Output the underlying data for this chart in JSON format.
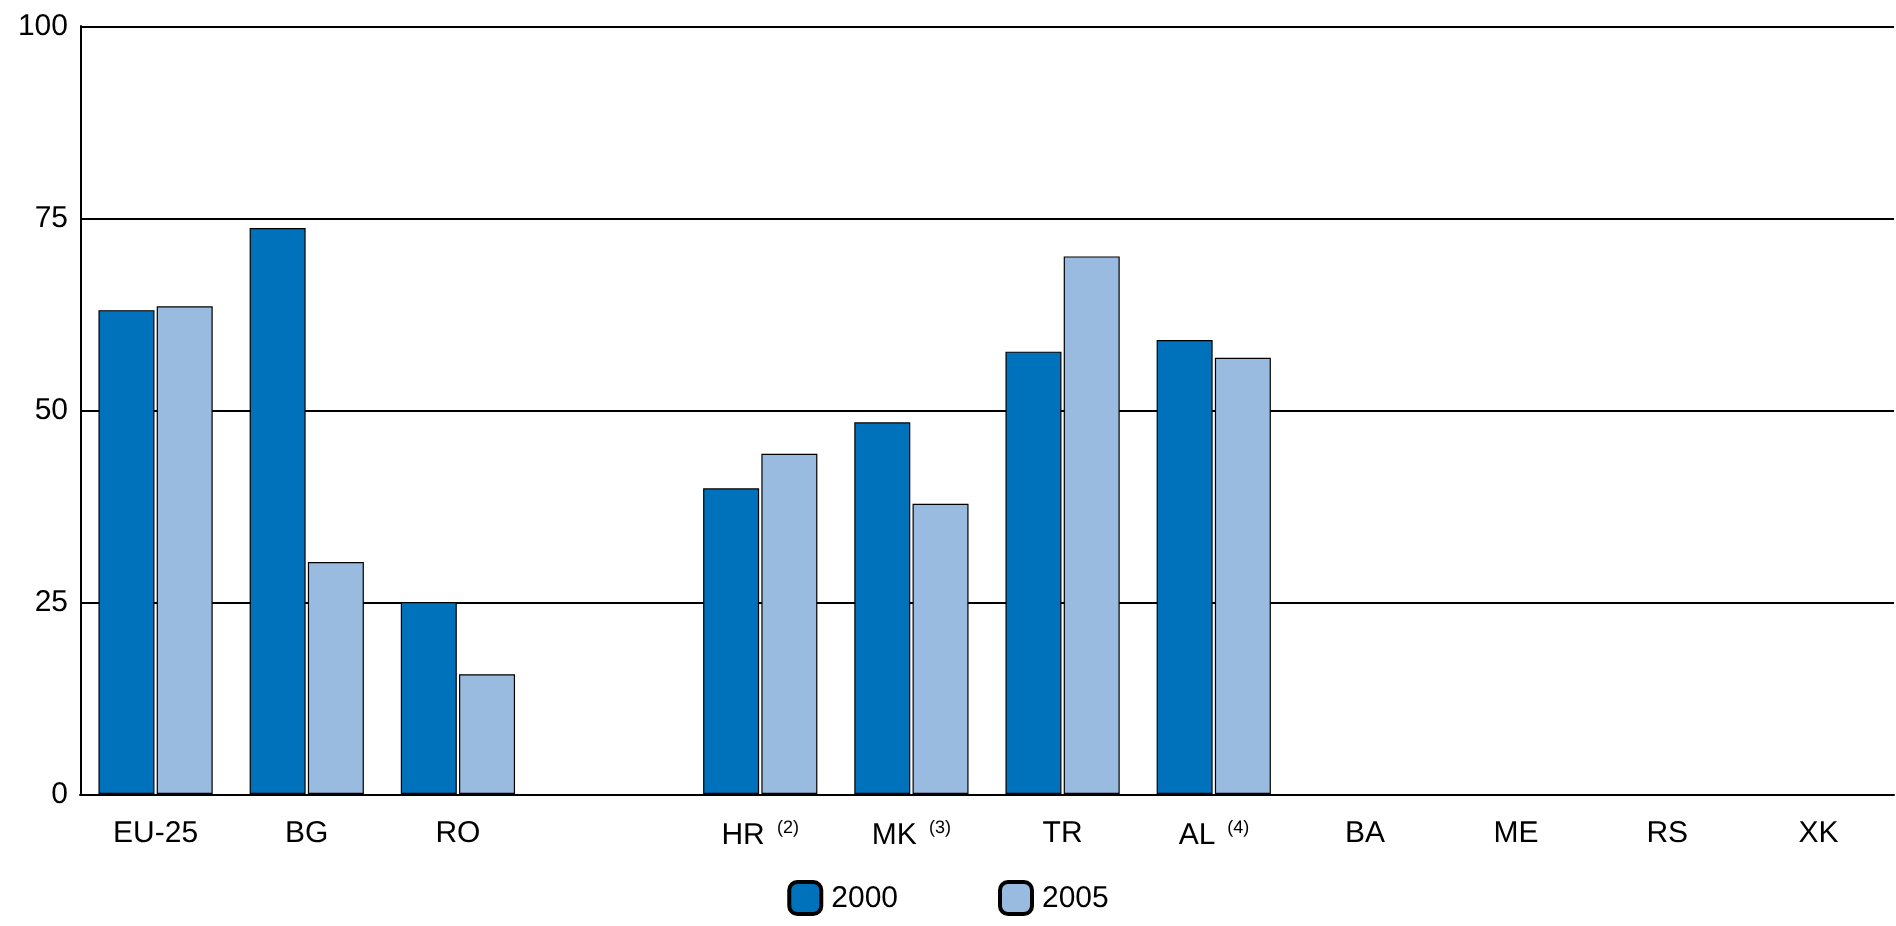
{
  "chart_data": {
    "type": "bar",
    "categories": [
      "EU-25",
      "BG",
      "RO",
      null,
      "HR $^{(2)}$",
      "MK $^{(3)}$",
      "TR",
      "AL $^{(4)}$",
      "BA",
      "ME",
      "RS",
      "XK"
    ],
    "series": [
      {
        "name": "2000",
        "color": "#0072bc",
        "values": [
          63.0,
          73.7,
          25.0,
          null,
          39.8,
          48.4,
          57.6,
          59.1,
          null,
          null,
          null,
          null
        ]
      },
      {
        "name": "2005",
        "color": "#99bbe0",
        "values": [
          63.5,
          30.2,
          15.6,
          null,
          44.3,
          37.8,
          70.0,
          56.8,
          null,
          null,
          null,
          null
        ]
      }
    ],
    "ylim": [
      0,
      100
    ],
    "yticks": [
      0,
      25,
      50,
      75,
      100
    ],
    "grid": "y",
    "legend": "bottom"
  }
}
